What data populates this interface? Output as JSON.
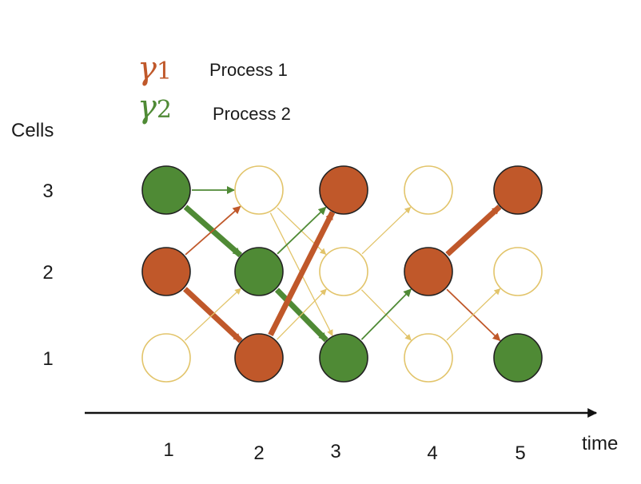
{
  "legend": [
    {
      "symbol": "γ",
      "subscript": "1",
      "label": "Process 1",
      "color": "#C0582A"
    },
    {
      "symbol": "γ",
      "subscript": "2",
      "label": "Process 2",
      "color": "#4F8A35"
    }
  ],
  "y_axis": {
    "title": "Cells",
    "ticks": [
      "3",
      "2",
      "1"
    ]
  },
  "x_axis": {
    "title": "time",
    "ticks": [
      "1",
      "2",
      "3",
      "4",
      "5"
    ]
  },
  "colors": {
    "process1": "#C0582A",
    "process2": "#4F8A35",
    "empty": "#E2C46A",
    "outline": "#222222"
  },
  "nodes": [
    {
      "time": 1,
      "cell": 3,
      "state": "process2"
    },
    {
      "time": 1,
      "cell": 2,
      "state": "process1"
    },
    {
      "time": 1,
      "cell": 1,
      "state": "empty"
    },
    {
      "time": 2,
      "cell": 3,
      "state": "empty"
    },
    {
      "time": 2,
      "cell": 2,
      "state": "process2"
    },
    {
      "time": 2,
      "cell": 1,
      "state": "process1"
    },
    {
      "time": 3,
      "cell": 3,
      "state": "process1"
    },
    {
      "time": 3,
      "cell": 2,
      "state": "empty"
    },
    {
      "time": 3,
      "cell": 1,
      "state": "process2"
    },
    {
      "time": 4,
      "cell": 3,
      "state": "empty"
    },
    {
      "time": 4,
      "cell": 2,
      "state": "process1"
    },
    {
      "time": 4,
      "cell": 1,
      "state": "empty"
    },
    {
      "time": 5,
      "cell": 3,
      "state": "process1"
    },
    {
      "time": 5,
      "cell": 2,
      "state": "empty"
    },
    {
      "time": 5,
      "cell": 1,
      "state": "process2"
    }
  ],
  "edges": [
    {
      "from": [
        1,
        3
      ],
      "to": [
        2,
        3
      ],
      "kind": "process2",
      "weight": "thin"
    },
    {
      "from": [
        1,
        3
      ],
      "to": [
        2,
        2
      ],
      "kind": "process2",
      "weight": "thick"
    },
    {
      "from": [
        1,
        2
      ],
      "to": [
        2,
        3
      ],
      "kind": "process1",
      "weight": "thin"
    },
    {
      "from": [
        1,
        2
      ],
      "to": [
        2,
        1
      ],
      "kind": "process1",
      "weight": "thick"
    },
    {
      "from": [
        1,
        1
      ],
      "to": [
        2,
        2
      ],
      "kind": "empty",
      "weight": "thin"
    },
    {
      "from": [
        2,
        3
      ],
      "to": [
        3,
        2
      ],
      "kind": "empty",
      "weight": "thin"
    },
    {
      "from": [
        2,
        3
      ],
      "to": [
        3,
        1
      ],
      "kind": "empty",
      "weight": "thin"
    },
    {
      "from": [
        2,
        2
      ],
      "to": [
        3,
        3
      ],
      "kind": "process2",
      "weight": "thin"
    },
    {
      "from": [
        2,
        2
      ],
      "to": [
        3,
        1
      ],
      "kind": "process2",
      "weight": "thick"
    },
    {
      "from": [
        2,
        1
      ],
      "to": [
        3,
        3
      ],
      "kind": "process1",
      "weight": "thick"
    },
    {
      "from": [
        2,
        1
      ],
      "to": [
        3,
        2
      ],
      "kind": "empty",
      "weight": "thin"
    },
    {
      "from": [
        3,
        2
      ],
      "to": [
        4,
        3
      ],
      "kind": "empty",
      "weight": "thin"
    },
    {
      "from": [
        3,
        2
      ],
      "to": [
        4,
        1
      ],
      "kind": "empty",
      "weight": "thin"
    },
    {
      "from": [
        3,
        1
      ],
      "to": [
        4,
        2
      ],
      "kind": "process2",
      "weight": "thin"
    },
    {
      "from": [
        4,
        2
      ],
      "to": [
        5,
        3
      ],
      "kind": "process1",
      "weight": "thick"
    },
    {
      "from": [
        4,
        2
      ],
      "to": [
        5,
        1
      ],
      "kind": "process1",
      "weight": "thin"
    },
    {
      "from": [
        4,
        1
      ],
      "to": [
        5,
        2
      ],
      "kind": "empty",
      "weight": "thin"
    }
  ]
}
